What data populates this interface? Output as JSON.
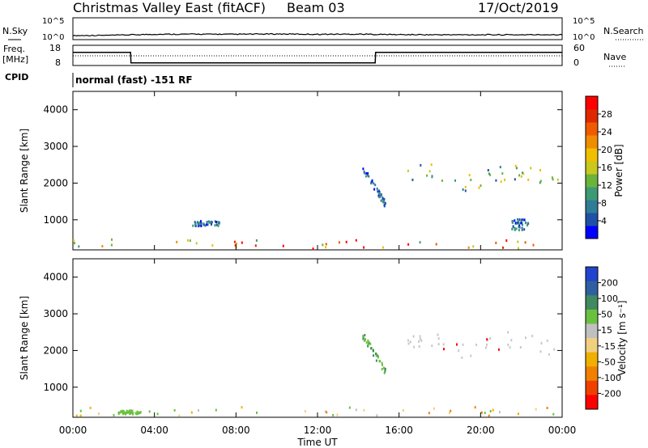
{
  "header": {
    "station": "Christmas Valley East (fitACF)",
    "beam": "Beam 03",
    "date": "17/Oct/2019"
  },
  "noise_panel": {
    "left_label": "N.Sky",
    "left_ticks": [
      "10^5",
      "10^0"
    ],
    "right_label": "N.Search",
    "right_ticks": [
      "10^5",
      "10^0"
    ]
  },
  "freq_panel": {
    "left_label_1": "Freq.",
    "left_label_2": "[MHz]",
    "left_ticks": [
      "18",
      "8"
    ],
    "right_label": "Nave",
    "right_ticks": [
      "60",
      "0"
    ],
    "cpid_label": "CPID",
    "cpid_text": "normal (fast) -151 RF"
  },
  "chart_data": [
    {
      "type": "line",
      "title": "N.Sky / N.Search",
      "x": [
        "00:00",
        "02:00",
        "04:00",
        "06:00",
        "08:00",
        "10:00",
        "12:00",
        "14:00",
        "16:00",
        "18:00",
        "20:00",
        "22:00",
        "24:00"
      ],
      "series": [
        {
          "name": "N.Sky",
          "values": [
            2.2,
            2.4,
            3.0,
            3.1,
            3.0,
            3.2,
            3.0,
            3.1,
            2.8,
            2.7,
            2.7,
            2.7,
            2.8
          ]
        }
      ]
    },
    {
      "type": "line",
      "title": "Freq. / Nave",
      "x": [
        "00:00",
        "02:50",
        "02:51",
        "14:50",
        "14:51",
        "24:00"
      ],
      "series": [
        {
          "name": "Freq. [MHz]",
          "values": [
            14.5,
            14.5,
            9.3,
            9.3,
            14.5,
            14.5
          ]
        },
        {
          "name": "Nave",
          "values": [
            30,
            30,
            30,
            30,
            30,
            30
          ]
        }
      ],
      "ylim": [
        8,
        18
      ]
    },
    {
      "type": "heatmap",
      "title": "Power",
      "xlabel": "Time UT",
      "ylabel": "Slant Range [km]",
      "x_ticks": [
        "00:00",
        "04:00",
        "08:00",
        "12:00",
        "16:00",
        "20:00",
        "00:00"
      ],
      "y_ticks": [
        1000,
        2000,
        3000,
        4000
      ],
      "xlim_hours": [
        0,
        24
      ],
      "ylim_km": [
        180,
        4500
      ],
      "colorbar": {
        "label": "Power [dB]",
        "ticks": [
          "4",
          "8",
          "12",
          "16",
          "20",
          "24",
          "28"
        ],
        "colors": [
          "#0000ff",
          "#1f50a8",
          "#2f7c96",
          "#3e9a74",
          "#6cb33c",
          "#c9c81c",
          "#f0c000",
          "#f08c00",
          "#f05a00",
          "#e02800",
          "#ff0000"
        ]
      },
      "features": [
        {
          "desc": "near-range ground scatter",
          "t": [
            0,
            24
          ],
          "r_km": [
            200,
            450
          ],
          "level": "12-28 dB"
        },
        {
          "desc": "ionospheric scatter band",
          "t": [
            16.0,
            23.8
          ],
          "r_km": [
            1900,
            2500
          ],
          "level": "8-24 dB"
        },
        {
          "desc": "diagonal echo",
          "t": [
            14.2,
            15.3
          ],
          "r_km": [
            1400,
            2400
          ],
          "level": "4-12 dB"
        },
        {
          "desc": "short patch",
          "t": [
            5.8,
            7.3
          ],
          "r_km": [
            800,
            950
          ],
          "level": "4-8 dB"
        },
        {
          "desc": "short patch",
          "t": [
            21.5,
            22.3
          ],
          "r_km": [
            700,
            1000
          ],
          "level": "4-16 dB"
        }
      ]
    },
    {
      "type": "heatmap",
      "title": "Velocity",
      "xlabel": "Time UT",
      "ylabel": "Slant Range [km]",
      "x_ticks": [
        "00:00",
        "04:00",
        "08:00",
        "12:00",
        "16:00",
        "20:00",
        "00:00"
      ],
      "y_ticks": [
        1000,
        2000,
        3000,
        4000
      ],
      "xlim_hours": [
        0,
        24
      ],
      "ylim_km": [
        180,
        4500
      ],
      "colorbar": {
        "label": "Velocity [m s⁻¹]",
        "ticks": [
          "200",
          "100",
          "50",
          "15",
          "-15",
          "-50",
          "-100",
          "-200"
        ],
        "colors": [
          "#2244cc",
          "#2f5fa0",
          "#3f8a60",
          "#6cc040",
          "#c0c0c0",
          "#f0d080",
          "#f0b000",
          "#f08000",
          "#f04000",
          "#ff0000"
        ]
      },
      "features": [
        {
          "desc": "ground scatter (grey)",
          "t": [
            16.0,
            23.8
          ],
          "r_km": [
            1900,
            2600
          ],
          "level": "-15 to 15 m/s"
        },
        {
          "desc": "near-range mixed",
          "t": [
            0,
            24
          ],
          "r_km": [
            200,
            450
          ],
          "level": "-100 to 50 m/s"
        },
        {
          "desc": "diagonal echo",
          "t": [
            14.2,
            15.3
          ],
          "r_km": [
            1400,
            2400
          ],
          "level": "50 to 100 m/s"
        },
        {
          "desc": "low green band",
          "t": [
            2.2,
            3.3
          ],
          "r_km": [
            250,
            350
          ],
          "level": "50 m/s"
        }
      ]
    }
  ]
}
